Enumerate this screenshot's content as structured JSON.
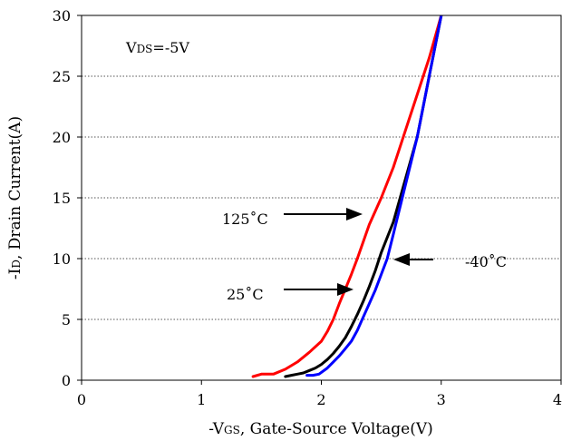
{
  "chart_data": {
    "type": "line",
    "xlabel": "-VGS, Gate-Source Voltage(V)",
    "ylabel": "-ID, Drain Current(A)",
    "xlim": [
      0,
      4
    ],
    "ylim": [
      0,
      30
    ],
    "x_ticks": [
      "0",
      "1",
      "2",
      "3",
      "4"
    ],
    "y_ticks": [
      "0",
      "5",
      "10",
      "15",
      "20",
      "25",
      "30"
    ],
    "grid": "horizontal",
    "condition": "VDS=-5V",
    "series": [
      {
        "name": "125°C",
        "color": "#ff0000",
        "x": [
          1.43,
          1.5,
          1.6,
          1.7,
          1.8,
          1.9,
          2.0,
          2.05,
          2.1,
          2.15,
          2.2,
          2.25,
          2.3,
          2.35,
          2.4,
          2.5,
          2.6,
          2.7,
          2.8,
          2.9,
          3.0
        ],
        "y": [
          0.3,
          0.5,
          0.5,
          0.9,
          1.5,
          2.3,
          3.2,
          4.0,
          5.0,
          6.3,
          7.5,
          8.7,
          10.0,
          11.4,
          12.8,
          15.0,
          17.5,
          20.5,
          23.5,
          26.5,
          30.0
        ]
      },
      {
        "name": "25°C",
        "color": "#000000",
        "x": [
          1.7,
          1.75,
          1.8,
          1.85,
          1.9,
          1.95,
          2.0,
          2.05,
          2.1,
          2.15,
          2.2,
          2.25,
          2.3,
          2.35,
          2.4,
          2.45,
          2.5,
          2.6,
          2.7,
          2.8,
          2.9,
          3.0
        ],
        "y": [
          0.3,
          0.4,
          0.5,
          0.6,
          0.8,
          1.0,
          1.3,
          1.7,
          2.2,
          2.8,
          3.5,
          4.4,
          5.4,
          6.5,
          7.7,
          9.0,
          10.5,
          13.0,
          16.5,
          20.0,
          25.0,
          30.0
        ]
      },
      {
        "name": "-40°C",
        "color": "#0000ff",
        "x": [
          1.88,
          1.93,
          1.98,
          2.05,
          2.1,
          2.15,
          2.2,
          2.25,
          2.3,
          2.35,
          2.4,
          2.45,
          2.5,
          2.55,
          2.6,
          2.7,
          2.8,
          2.9,
          3.0
        ],
        "y": [
          0.4,
          0.4,
          0.5,
          1.0,
          1.5,
          2.0,
          2.6,
          3.2,
          4.1,
          5.2,
          6.3,
          7.4,
          8.7,
          10.0,
          12.0,
          16.0,
          20.0,
          25.0,
          30.0
        ]
      }
    ],
    "annotations": {
      "vds": "VDS=-5V",
      "t125": "125˚C",
      "t25": "25˚C",
      "tm40": "-40˚C"
    }
  }
}
